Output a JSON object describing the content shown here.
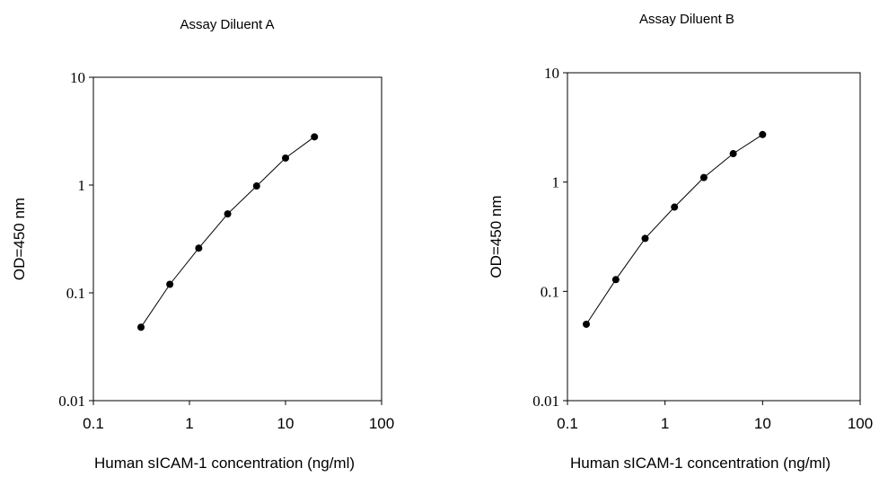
{
  "chart_data": [
    {
      "type": "scatter",
      "title": "Assay Diluent A",
      "xlabel": "Human sICAM-1 concentration (ng/ml)",
      "ylabel": "OD=450 nm",
      "xscale": "log",
      "yscale": "log",
      "xlim": [
        0.1,
        100
      ],
      "ylim": [
        0.01,
        10
      ],
      "xticks": [
        "0.1",
        "1",
        "10",
        "100"
      ],
      "yticks": [
        "0.01",
        "0.1",
        "1",
        "10"
      ],
      "grid": false,
      "markers": "filled circles joined by line",
      "series": [
        {
          "x": [
            0.313,
            0.625,
            1.25,
            2.5,
            5,
            10,
            20
          ],
          "y": [
            0.048,
            0.12,
            0.26,
            0.54,
            0.98,
            1.78,
            2.8
          ]
        }
      ]
    },
    {
      "type": "scatter",
      "title": "Assay Diluent B",
      "xlabel": "Human sICAM-1 concentration (ng/ml)",
      "ylabel": "OD=450 nm",
      "xscale": "log",
      "yscale": "log",
      "xlim": [
        0.1,
        100
      ],
      "ylim": [
        0.01,
        10
      ],
      "xticks": [
        "0.1",
        "1",
        "10",
        "100"
      ],
      "yticks": [
        "0.01",
        "0.1",
        "1",
        "10"
      ],
      "grid": false,
      "markers": "filled circles joined by line",
      "series": [
        {
          "x": [
            0.156,
            0.313,
            0.625,
            1.25,
            2.5,
            5,
            10
          ],
          "y": [
            0.05,
            0.128,
            0.305,
            0.59,
            1.1,
            1.82,
            2.72
          ]
        }
      ]
    }
  ]
}
